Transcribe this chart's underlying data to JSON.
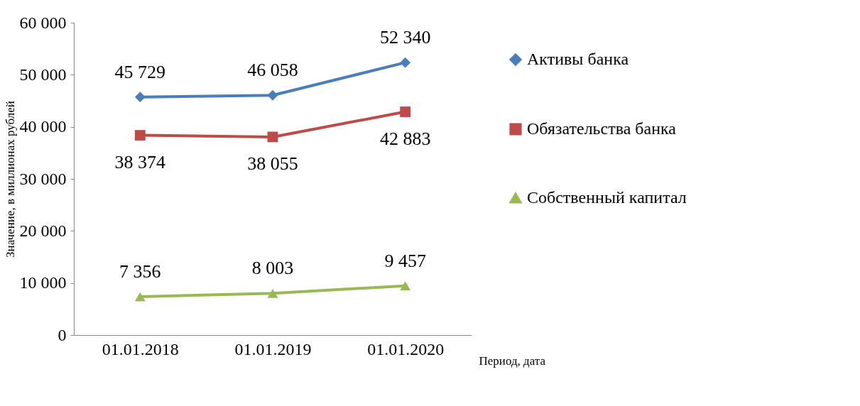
{
  "chart_data": {
    "type": "line",
    "ylabel": "Значение, в миллионах рублей",
    "xlabel": "Период, дата",
    "categories": [
      "01.01.2018",
      "01.01.2019",
      "01.01.2020"
    ],
    "series": [
      {
        "name": "Активы банка",
        "color": "#4a7ebb",
        "marker": "diamond",
        "values": [
          45729,
          46058,
          52340
        ],
        "value_labels": [
          "45 729",
          "46 058",
          "52 340"
        ]
      },
      {
        "name": "Обязательства банка",
        "color": "#be4b48",
        "marker": "square",
        "values": [
          38374,
          38055,
          42883
        ],
        "value_labels": [
          "38 374",
          "38 055",
          "42 883"
        ]
      },
      {
        "name": "Собственный капитал",
        "color": "#98b954",
        "marker": "triangle",
        "values": [
          7356,
          8003,
          9457
        ],
        "value_labels": [
          "7 356",
          "8 003",
          "9 457"
        ]
      }
    ],
    "ylim": [
      0,
      60000
    ],
    "yticks": [
      {
        "value": 0,
        "label": "0"
      },
      {
        "value": 10000,
        "label": "10 000"
      },
      {
        "value": 20000,
        "label": "20 000"
      },
      {
        "value": 30000,
        "label": "30 000"
      },
      {
        "value": 40000,
        "label": "40 000"
      },
      {
        "value": 50000,
        "label": "50 000"
      },
      {
        "value": 60000,
        "label": "60 000"
      }
    ],
    "grid": false,
    "legend": "right",
    "line_style": "solid"
  }
}
